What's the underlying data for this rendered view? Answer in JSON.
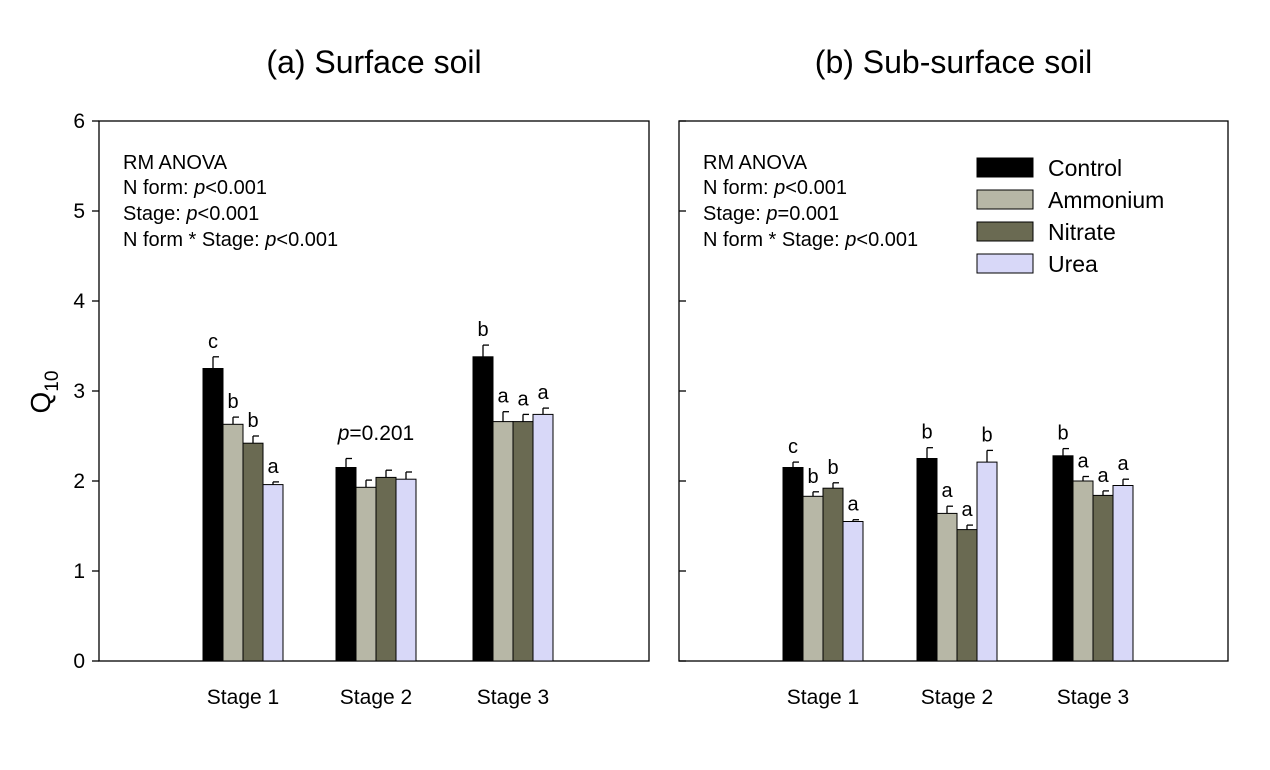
{
  "figure": {
    "ylabel_main": "Q",
    "ylabel_sub": "10"
  },
  "chart_data": [
    {
      "type": "bar",
      "title": "(a) Surface soil",
      "xlabel": "",
      "ylabel": "Q10",
      "ylim": [
        0,
        6
      ],
      "yticks": [
        0,
        1,
        2,
        3,
        4,
        5,
        6
      ],
      "categories": [
        "Stage 1",
        "Stage 2",
        "Stage 3"
      ],
      "series": [
        {
          "name": "Control",
          "values": [
            3.25,
            2.15,
            3.38
          ],
          "errors": [
            0.13,
            0.1,
            0.13
          ],
          "letters": [
            "c",
            "",
            "b"
          ]
        },
        {
          "name": "Ammonium",
          "values": [
            2.63,
            1.93,
            2.66
          ],
          "errors": [
            0.08,
            0.08,
            0.11
          ],
          "letters": [
            "b",
            "",
            "a"
          ]
        },
        {
          "name": "Nitrate",
          "values": [
            2.42,
            2.04,
            2.66
          ],
          "errors": [
            0.08,
            0.08,
            0.08
          ],
          "letters": [
            "b",
            "",
            "a"
          ]
        },
        {
          "name": "Urea",
          "values": [
            1.96,
            2.02,
            2.74
          ],
          "errors": [
            0.03,
            0.08,
            0.07
          ],
          "letters": [
            "a",
            "",
            "a"
          ]
        }
      ],
      "group_annotations": [
        {
          "category": "Stage 2",
          "italic": "p",
          "text": "=0.201"
        }
      ],
      "stats": {
        "heading": "RM ANOVA",
        "lines": [
          {
            "label": "N form: ",
            "italic": "p",
            "value": "<0.001"
          },
          {
            "label": "Stage: ",
            "italic": "p",
            "value": "<0.001"
          },
          {
            "label": "N form * Stage: ",
            "italic": "p",
            "value": "<0.001"
          }
        ]
      }
    },
    {
      "type": "bar",
      "title": "(b) Sub-surface soil",
      "xlabel": "",
      "ylabel": "",
      "ylim": [
        0,
        6
      ],
      "yticks": [
        0,
        1,
        2,
        3,
        4,
        5,
        6
      ],
      "categories": [
        "Stage 1",
        "Stage 2",
        "Stage 3"
      ],
      "series": [
        {
          "name": "Control",
          "values": [
            2.15,
            2.25,
            2.28
          ],
          "errors": [
            0.06,
            0.12,
            0.08
          ],
          "letters": [
            "c",
            "b",
            "b"
          ]
        },
        {
          "name": "Ammonium",
          "values": [
            1.83,
            1.64,
            2.0
          ],
          "errors": [
            0.05,
            0.08,
            0.05
          ],
          "letters": [
            "b",
            "a",
            "a"
          ]
        },
        {
          "name": "Nitrate",
          "values": [
            1.92,
            1.46,
            1.84
          ],
          "errors": [
            0.06,
            0.05,
            0.05
          ],
          "letters": [
            "b",
            "a",
            "a"
          ]
        },
        {
          "name": "Urea",
          "values": [
            1.55,
            2.21,
            1.95
          ],
          "errors": [
            0.02,
            0.13,
            0.07
          ],
          "letters": [
            "a",
            "b",
            "a"
          ]
        }
      ],
      "legend": {
        "placement": "top-right",
        "entries": [
          "Control",
          "Ammonium",
          "Nitrate",
          "Urea"
        ]
      },
      "stats": {
        "heading": "RM ANOVA",
        "lines": [
          {
            "label": "N form: ",
            "italic": "p",
            "value": "<0.001"
          },
          {
            "label": "Stage: ",
            "italic": "p",
            "value": "=0.001"
          },
          {
            "label": "N form * Stage: ",
            "italic": "p",
            "value": "<0.001"
          }
        ]
      }
    }
  ],
  "colors": {
    "Control": "#000000",
    "Ammonium": "#b7b7a6",
    "Nitrate": "#6a6a52",
    "Urea": "#d8d8f8"
  }
}
